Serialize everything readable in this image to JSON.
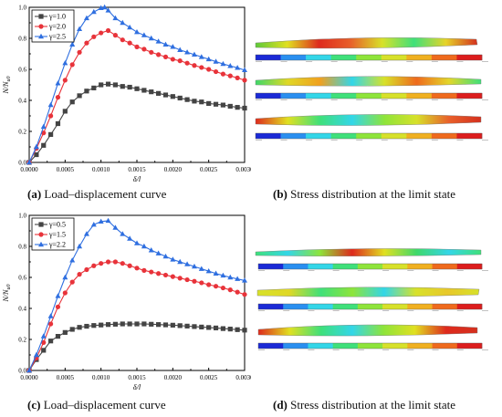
{
  "colors": {
    "series1": "#444444",
    "series2": "#e8333a",
    "series3": "#2f6fe0",
    "contour": [
      "#1b2ad6",
      "#2a8ff0",
      "#33d6e8",
      "#3fe07a",
      "#8ee43a",
      "#d7e12a",
      "#f0b020",
      "#ef6a1d",
      "#dc1d1d"
    ]
  },
  "chart_data": [
    {
      "type": "line",
      "title": "",
      "xlabel": "δ/l",
      "ylabel": "N/N_u0",
      "ylabel_main": "N",
      "ylabel_den": "N",
      "ylabel_sub": "u0",
      "xlim": [
        0,
        0.003
      ],
      "ylim": [
        0,
        1.0
      ],
      "xticks": [
        "0.0000",
        "0.0005",
        "0.0010",
        "0.0015",
        "0.0020",
        "0.0025",
        "0.0030"
      ],
      "yticks": [
        "0.0",
        "0.2",
        "0.4",
        "0.6",
        "0.8",
        "1.0"
      ],
      "legend_position": "top-left",
      "series": [
        {
          "name": "γ=1.0",
          "marker": "square",
          "x": [
            0,
            0.0001,
            0.0002,
            0.0003,
            0.0004,
            0.0005,
            0.0006,
            0.0007,
            0.0008,
            0.0009,
            0.001,
            0.0011,
            0.0012,
            0.0013,
            0.0014,
            0.0015,
            0.0016,
            0.0017,
            0.0018,
            0.0019,
            0.002,
            0.0021,
            0.0022,
            0.0023,
            0.0024,
            0.0025,
            0.0026,
            0.0027,
            0.0028,
            0.0029,
            0.003
          ],
          "y": [
            0,
            0.05,
            0.11,
            0.18,
            0.25,
            0.33,
            0.39,
            0.43,
            0.46,
            0.48,
            0.5,
            0.505,
            0.5,
            0.49,
            0.485,
            0.475,
            0.465,
            0.455,
            0.445,
            0.435,
            0.425,
            0.415,
            0.405,
            0.395,
            0.39,
            0.38,
            0.375,
            0.37,
            0.362,
            0.355,
            0.35
          ]
        },
        {
          "name": "γ=2.0",
          "marker": "circle",
          "x": [
            0,
            0.0001,
            0.0002,
            0.0003,
            0.0004,
            0.0005,
            0.0006,
            0.0007,
            0.0008,
            0.0009,
            0.001,
            0.0011,
            0.0012,
            0.0013,
            0.0014,
            0.0015,
            0.0016,
            0.0017,
            0.0018,
            0.0019,
            0.002,
            0.0021,
            0.0022,
            0.0023,
            0.0024,
            0.0025,
            0.0026,
            0.0027,
            0.0028,
            0.0029,
            0.003
          ],
          "y": [
            0,
            0.09,
            0.19,
            0.3,
            0.42,
            0.53,
            0.63,
            0.71,
            0.77,
            0.81,
            0.835,
            0.85,
            0.82,
            0.79,
            0.77,
            0.745,
            0.73,
            0.71,
            0.695,
            0.68,
            0.665,
            0.655,
            0.64,
            0.625,
            0.612,
            0.6,
            0.585,
            0.57,
            0.558,
            0.545,
            0.53
          ]
        },
        {
          "name": "γ=2.5",
          "marker": "triangle",
          "x": [
            0,
            0.0001,
            0.0002,
            0.0003,
            0.0004,
            0.0005,
            0.0006,
            0.0007,
            0.0008,
            0.0009,
            0.001,
            0.00105,
            0.0011,
            0.0012,
            0.0013,
            0.0014,
            0.0015,
            0.0016,
            0.0017,
            0.0018,
            0.0019,
            0.002,
            0.0021,
            0.0022,
            0.0023,
            0.0024,
            0.0025,
            0.0026,
            0.0027,
            0.0028,
            0.0029,
            0.003
          ],
          "y": [
            0,
            0.1,
            0.23,
            0.37,
            0.51,
            0.64,
            0.76,
            0.86,
            0.93,
            0.97,
            0.995,
            1.0,
            0.98,
            0.93,
            0.9,
            0.87,
            0.84,
            0.82,
            0.8,
            0.78,
            0.76,
            0.745,
            0.725,
            0.71,
            0.695,
            0.68,
            0.665,
            0.65,
            0.635,
            0.622,
            0.61,
            0.595
          ]
        }
      ]
    },
    {
      "type": "line",
      "title": "",
      "xlabel": "δ/l",
      "ylabel": "N/N_u0",
      "ylabel_main": "N",
      "ylabel_den": "N",
      "ylabel_sub": "u0",
      "xlim": [
        0,
        0.003
      ],
      "ylim": [
        0,
        1.0
      ],
      "xticks": [
        "0.0000",
        "0.0005",
        "0.0010",
        "0.0015",
        "0.0020",
        "0.0025",
        "0.0030"
      ],
      "yticks": [
        "0.0",
        "0.2",
        "0.4",
        "0.6",
        "0.8",
        "1.0"
      ],
      "legend_position": "top-left",
      "series": [
        {
          "name": "γ=0.5",
          "marker": "square",
          "x": [
            0,
            0.0001,
            0.0002,
            0.0003,
            0.0004,
            0.0005,
            0.0006,
            0.0007,
            0.0008,
            0.0009,
            0.001,
            0.0011,
            0.0012,
            0.0013,
            0.0014,
            0.0015,
            0.0016,
            0.0017,
            0.0018,
            0.0019,
            0.002,
            0.0021,
            0.0022,
            0.0023,
            0.0024,
            0.0025,
            0.0026,
            0.0027,
            0.0028,
            0.0029,
            0.003
          ],
          "y": [
            0,
            0.07,
            0.13,
            0.19,
            0.22,
            0.245,
            0.265,
            0.278,
            0.285,
            0.29,
            0.293,
            0.296,
            0.298,
            0.3,
            0.3,
            0.3,
            0.3,
            0.298,
            0.296,
            0.294,
            0.292,
            0.289,
            0.286,
            0.283,
            0.28,
            0.277,
            0.274,
            0.27,
            0.267,
            0.263,
            0.26
          ]
        },
        {
          "name": "γ=1.5",
          "marker": "circle",
          "x": [
            0,
            0.0001,
            0.0002,
            0.0003,
            0.0004,
            0.0005,
            0.0006,
            0.0007,
            0.0008,
            0.0009,
            0.001,
            0.0011,
            0.0012,
            0.0013,
            0.0014,
            0.0015,
            0.0016,
            0.0017,
            0.0018,
            0.0019,
            0.002,
            0.0021,
            0.0022,
            0.0023,
            0.0024,
            0.0025,
            0.0026,
            0.0027,
            0.0028,
            0.0029,
            0.003
          ],
          "y": [
            0,
            0.08,
            0.18,
            0.3,
            0.41,
            0.5,
            0.57,
            0.62,
            0.65,
            0.675,
            0.69,
            0.7,
            0.7,
            0.69,
            0.675,
            0.66,
            0.645,
            0.635,
            0.625,
            0.615,
            0.605,
            0.595,
            0.585,
            0.575,
            0.565,
            0.553,
            0.543,
            0.532,
            0.52,
            0.505,
            0.49
          ]
        },
        {
          "name": "γ=2.2",
          "marker": "triangle",
          "x": [
            0,
            0.0001,
            0.0002,
            0.0003,
            0.0004,
            0.0005,
            0.0006,
            0.0007,
            0.0008,
            0.0009,
            0.001,
            0.0011,
            0.0012,
            0.0013,
            0.0014,
            0.0015,
            0.0016,
            0.0017,
            0.0018,
            0.0019,
            0.002,
            0.0021,
            0.0022,
            0.0023,
            0.0024,
            0.0025,
            0.0026,
            0.0027,
            0.0028,
            0.0029,
            0.003
          ],
          "y": [
            0,
            0.1,
            0.22,
            0.35,
            0.48,
            0.6,
            0.71,
            0.8,
            0.88,
            0.94,
            0.96,
            0.965,
            0.92,
            0.88,
            0.85,
            0.82,
            0.8,
            0.775,
            0.755,
            0.735,
            0.715,
            0.7,
            0.685,
            0.67,
            0.655,
            0.64,
            0.625,
            0.612,
            0.6,
            0.59,
            0.58
          ]
        }
      ]
    }
  ],
  "captions": {
    "a": {
      "label": "(a)",
      "text": " Load–displacement curve"
    },
    "b": {
      "label": "(b)",
      "text": " Stress distribution at the limit state"
    },
    "c": {
      "label": "(c)",
      "text": " Load–displacement curve"
    },
    "d": {
      "label": "(d)",
      "text": " Stress distribution at the limit state"
    }
  }
}
